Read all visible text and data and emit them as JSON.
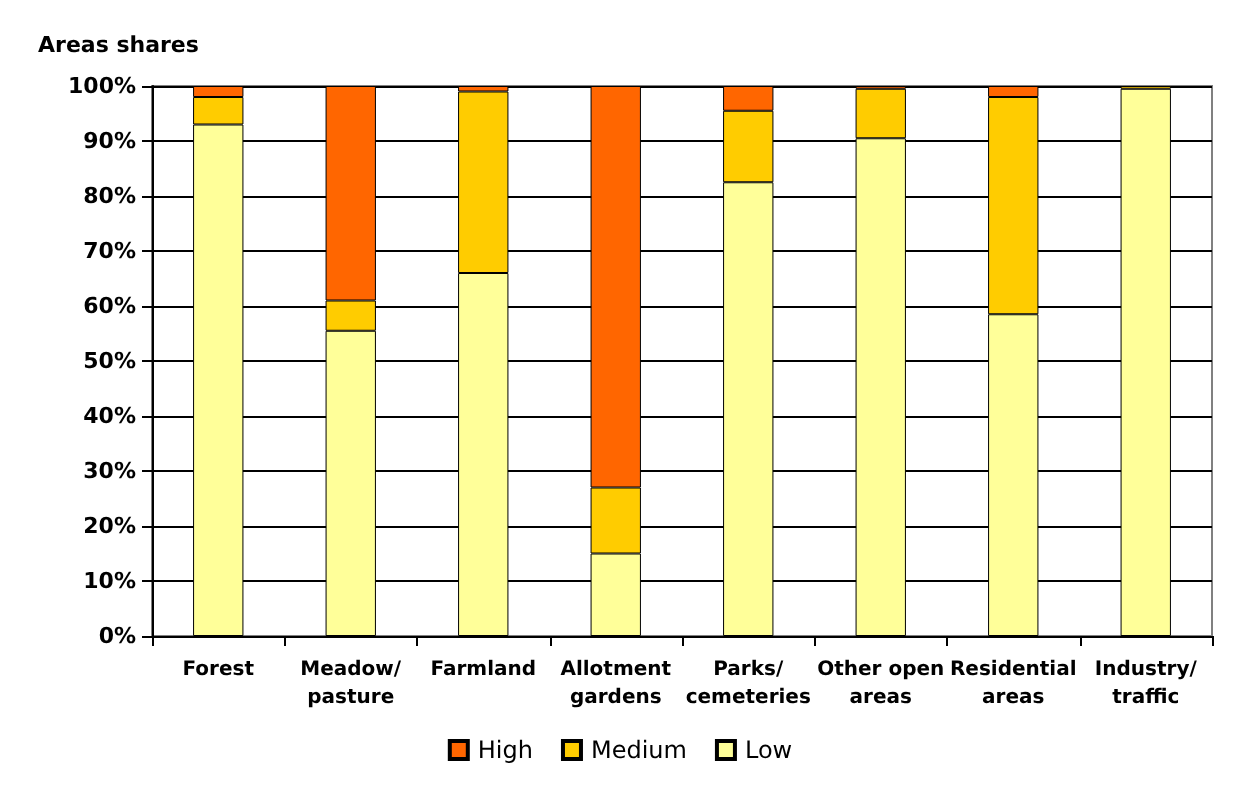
{
  "chart_data": {
    "type": "bar",
    "title": "Areas shares",
    "stacked": true,
    "categories": [
      "Forest",
      "Meadow/\npasture",
      "Farmland",
      "Allotment\ngardens",
      "Parks/\ncemeteries",
      "Other open\nareas",
      "Residential\nareas",
      "Industry/\ntraffic"
    ],
    "series": [
      {
        "name": "Low",
        "color": "#ffff99",
        "values": [
          93,
          55.5,
          66,
          15,
          82.5,
          90.5,
          58.5,
          99.5
        ]
      },
      {
        "name": "Medium",
        "color": "#ffcc00",
        "values": [
          5,
          5.5,
          33,
          12,
          13,
          9,
          39.5,
          0.5
        ]
      },
      {
        "name": "High",
        "color": "#ff6600",
        "values": [
          2,
          39,
          1,
          73,
          4.5,
          0.5,
          2,
          null
        ]
      }
    ],
    "ylim": [
      0,
      100
    ],
    "yticks": [
      {
        "value": 0,
        "label": "0%"
      },
      {
        "value": 10,
        "label": "10%"
      },
      {
        "value": 20,
        "label": "20%"
      },
      {
        "value": 30,
        "label": "30%"
      },
      {
        "value": 40,
        "label": "40%"
      },
      {
        "value": 50,
        "label": "50%"
      },
      {
        "value": 60,
        "label": "60%"
      },
      {
        "value": 70,
        "label": "70%"
      },
      {
        "value": 80,
        "label": "80%"
      },
      {
        "value": 90,
        "label": "90%"
      },
      {
        "value": 100,
        "label": "100%"
      }
    ],
    "grid": "y",
    "legend": "bottom"
  }
}
